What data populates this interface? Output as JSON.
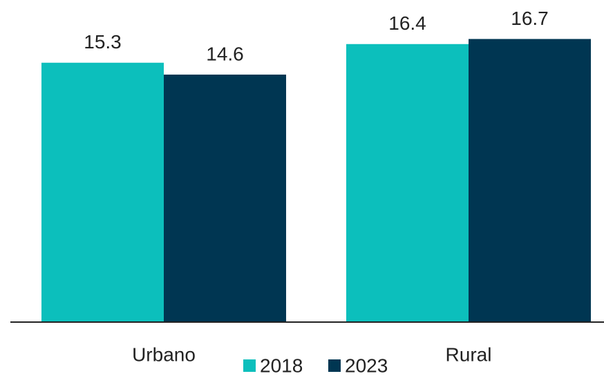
{
  "chart_data": {
    "type": "bar",
    "categories": [
      "Urbano",
      "Rural"
    ],
    "series": [
      {
        "name": "2018",
        "color": "#0cbfbc",
        "values": [
          15.3,
          16.4
        ]
      },
      {
        "name": "2023",
        "color": "#003652",
        "values": [
          14.6,
          16.7
        ]
      }
    ],
    "ylim": [
      0,
      19
    ],
    "legend": "bottom"
  }
}
